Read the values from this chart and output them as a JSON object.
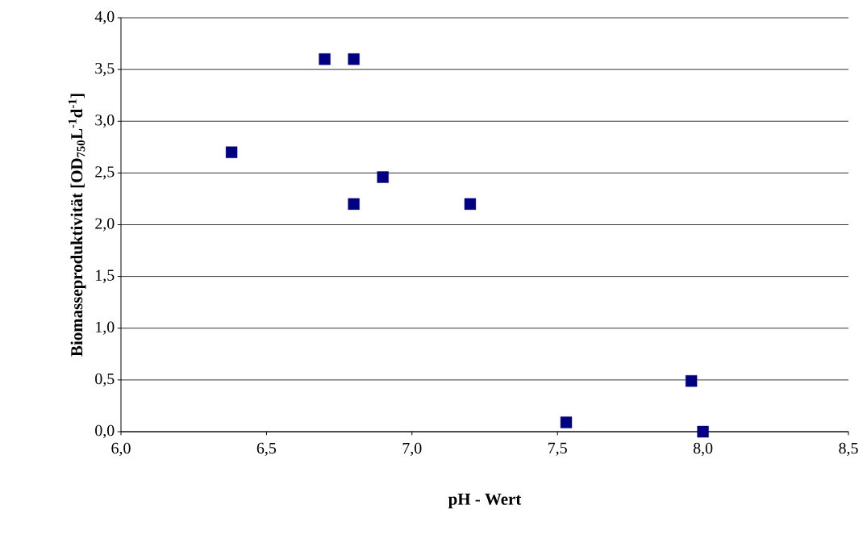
{
  "chart_data": {
    "type": "scatter",
    "xlabel": "pH - Wert",
    "ylabel": "Biomasseproduktivität [OD$_{750}$L$^{-1}$d$^{-1}$]",
    "x": [
      6.38,
      6.7,
      6.8,
      6.8,
      6.9,
      7.2,
      7.53,
      7.96,
      8.0
    ],
    "series": [
      {
        "color": "#000080",
        "values": [
          2.7,
          3.6,
          3.6,
          2.2,
          2.46,
          2.2,
          0.09,
          0.49,
          0.0
        ]
      }
    ],
    "xlim": [
      6.0,
      8.5
    ],
    "ylim": [
      0.0,
      4.0
    ],
    "xticks": [
      {
        "value": 6.0,
        "label": "6,0"
      },
      {
        "value": 6.5,
        "label": "6,5"
      },
      {
        "value": 7.0,
        "label": "7,0"
      },
      {
        "value": 7.5,
        "label": "7,5"
      },
      {
        "value": 8.0,
        "label": "8,0"
      },
      {
        "value": 8.5,
        "label": "8,5"
      }
    ],
    "yticks": [
      {
        "value": 0.0,
        "label": "0,0"
      },
      {
        "value": 0.5,
        "label": "0,5"
      },
      {
        "value": 1.0,
        "label": "1,0"
      },
      {
        "value": 1.5,
        "label": "1,5"
      },
      {
        "value": 2.0,
        "label": "2,0"
      },
      {
        "value": 2.5,
        "label": "2,5"
      },
      {
        "value": 3.0,
        "label": "3,0"
      },
      {
        "value": 3.5,
        "label": "3,5"
      },
      {
        "value": 4.0,
        "label": "4,0"
      }
    ],
    "grid": "y",
    "marker": "square"
  }
}
